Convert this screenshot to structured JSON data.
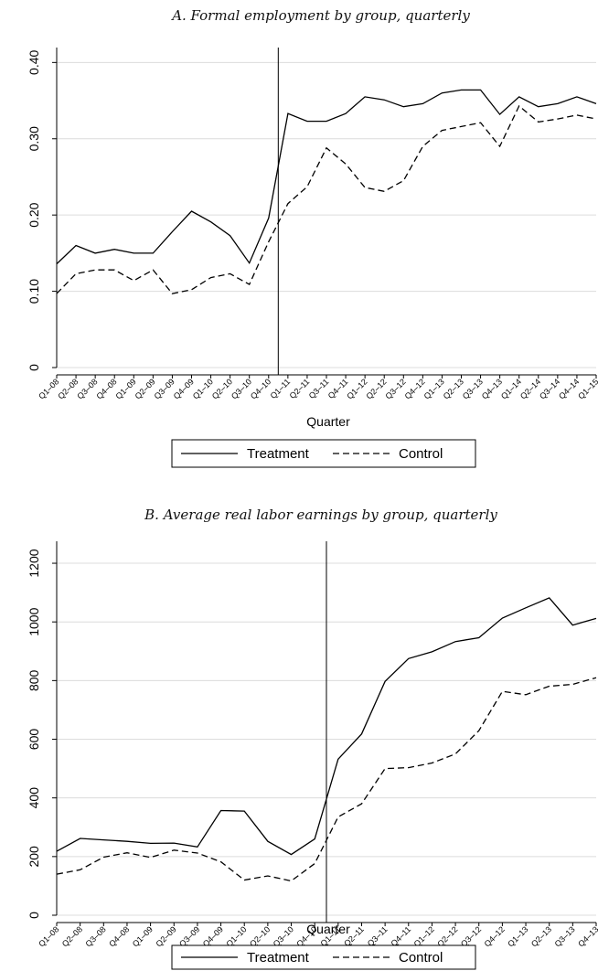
{
  "chart_data": [
    {
      "type": "line",
      "title": "A. Formal employment by group, quarterly",
      "xlabel": "Quarter",
      "ylabel": "",
      "ylim": [
        0,
        0.41
      ],
      "yticks": [
        0,
        0.1,
        0.2,
        0.3,
        0.4
      ],
      "ytick_labels": [
        "0",
        "0.10",
        "0.20",
        "0.30",
        "0.40"
      ],
      "categories": [
        "Q1–08",
        "Q2–08",
        "Q3–08",
        "Q4–08",
        "Q1–09",
        "Q2–09",
        "Q3–09",
        "Q4–09",
        "Q1–10",
        "Q2–10",
        "Q3–10",
        "Q4–10",
        "Q1–11",
        "Q2–11",
        "Q3–11",
        "Q4–11",
        "Q1–12",
        "Q2–12",
        "Q3–12",
        "Q4–12",
        "Q1–13",
        "Q2–13",
        "Q3–13",
        "Q4–13",
        "Q1–14",
        "Q2–14",
        "Q3–14",
        "Q4–14",
        "Q1–15"
      ],
      "vline_x": 11.5,
      "grid": true,
      "legend_position": "bottom",
      "series": [
        {
          "name": "Treatment",
          "style": "solid",
          "values": [
            0.136,
            0.16,
            0.15,
            0.155,
            0.15,
            0.15,
            0.178,
            0.205,
            0.191,
            0.173,
            0.137,
            0.196,
            0.333,
            0.323,
            0.323,
            0.333,
            0.355,
            0.351,
            0.342,
            0.346,
            0.36,
            0.364,
            0.364,
            0.332,
            0.355,
            0.342,
            0.346,
            0.355,
            0.346
          ]
        },
        {
          "name": "Control",
          "style": "dashed",
          "values": [
            0.097,
            0.123,
            0.128,
            0.128,
            0.114,
            0.128,
            0.097,
            0.102,
            0.118,
            0.123,
            0.109,
            0.165,
            0.215,
            0.237,
            0.288,
            0.267,
            0.236,
            0.231,
            0.245,
            0.29,
            0.311,
            0.316,
            0.321,
            0.29,
            0.343,
            0.322,
            0.326,
            0.331,
            0.326
          ]
        }
      ]
    },
    {
      "type": "line",
      "title": "B. Average real labor earnings by group, quarterly",
      "xlabel": "Quarter",
      "ylabel": "",
      "ylim": [
        0,
        1250
      ],
      "yticks": [
        0,
        200,
        400,
        600,
        800,
        1000,
        1200
      ],
      "ytick_labels": [
        "0",
        "200",
        "400",
        "600",
        "800",
        "1000",
        "1200"
      ],
      "categories": [
        "Q1–08",
        "Q2–08",
        "Q3–08",
        "Q4–08",
        "Q1–09",
        "Q2–09",
        "Q3–09",
        "Q4–09",
        "Q1–10",
        "Q2–10",
        "Q3–10",
        "Q4–10",
        "Q1–11",
        "Q2–11",
        "Q3–11",
        "Q4–11",
        "Q1–12",
        "Q2–12",
        "Q3–12",
        "Q4–12",
        "Q1–13",
        "Q2–13",
        "Q3–13",
        "Q4–13"
      ],
      "vline_x": 11.5,
      "grid": true,
      "legend_position": "bottom",
      "series": [
        {
          "name": "Treatment",
          "style": "solid",
          "values": [
            218,
            262,
            257,
            252,
            245,
            246,
            233,
            357,
            355,
            252,
            207,
            260,
            532,
            618,
            797,
            875,
            898,
            933,
            946,
            1013,
            1048,
            1082,
            989,
            1012
          ]
        },
        {
          "name": "Control",
          "style": "dashed",
          "values": [
            140,
            155,
            198,
            213,
            197,
            222,
            212,
            182,
            120,
            134,
            117,
            176,
            335,
            380,
            500,
            503,
            519,
            550,
            629,
            763,
            752,
            781,
            787,
            810
          ]
        }
      ]
    }
  ]
}
